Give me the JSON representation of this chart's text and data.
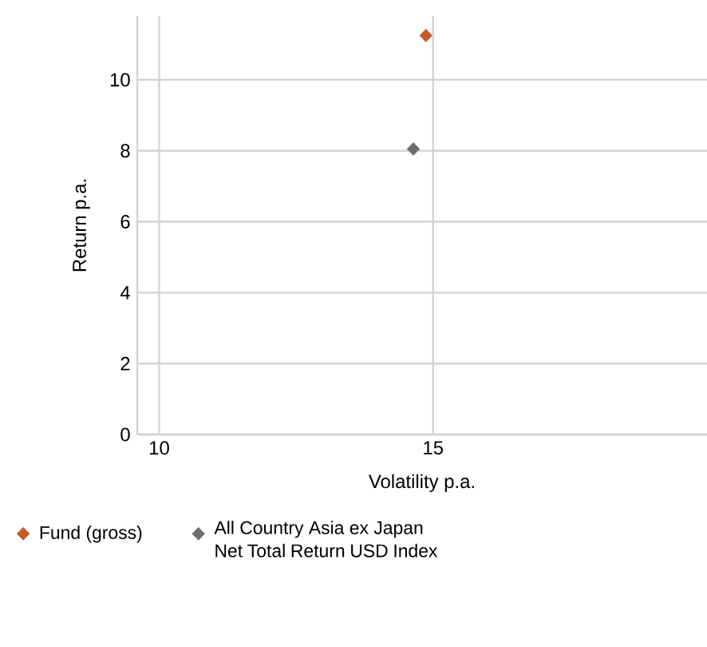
{
  "chart_data": {
    "type": "scatter",
    "xlabel": "Volatility p.a.",
    "ylabel": "Return p.a.",
    "xlim": [
      9.6,
      20
    ],
    "ylim": [
      0,
      11.8
    ],
    "xticks": [
      10,
      15
    ],
    "yticks": [
      0,
      2,
      4,
      6,
      8,
      10
    ],
    "grid": true,
    "legend": "bottom",
    "marker": "diamond",
    "series": [
      {
        "name": "Fund (gross)",
        "color": "#c55a2b",
        "x": [
          14.87
        ],
        "values": [
          11.25
        ]
      },
      {
        "name": "All Country Asia ex Japan Net Total Return USD Index",
        "color": "#6d6d6d",
        "x": [
          14.64
        ],
        "values": [
          8.05
        ]
      }
    ]
  }
}
